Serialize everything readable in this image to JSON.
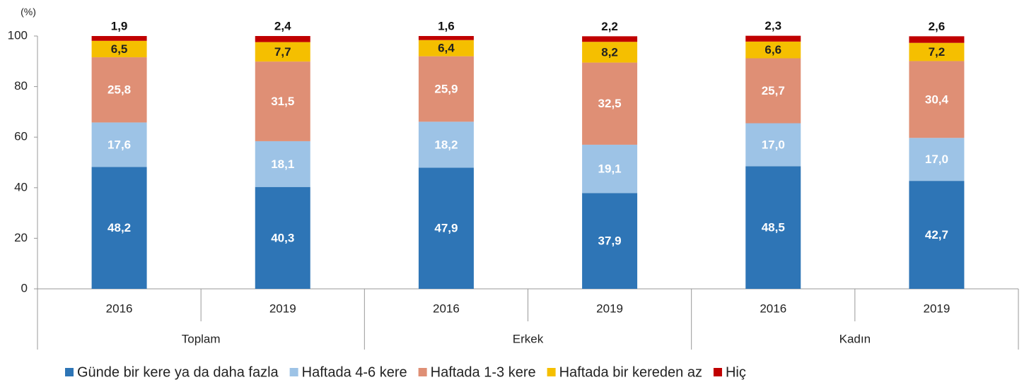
{
  "chart_data": {
    "type": "stacked_bar",
    "y_label": "(%)",
    "categories": [
      "2016",
      "2019",
      "2016",
      "2019",
      "2016",
      "2019"
    ],
    "groups": [
      "Toplam",
      "Erkek",
      "Kadın"
    ],
    "ylim": [
      0,
      100
    ],
    "yticks": [
      0,
      20,
      40,
      60,
      80,
      100
    ],
    "grid": false,
    "legend": "bottom",
    "series": [
      {
        "name": "Günde bir kere ya da daha fazla",
        "color": "#2e75b6",
        "values": [
          48.2,
          40.3,
          47.9,
          37.9,
          48.5,
          42.7
        ],
        "value_labels": [
          "48,2",
          "40,3",
          "47,9",
          "37,9",
          "48,5",
          "42,7"
        ]
      },
      {
        "name": "Haftada 4-6 kere",
        "color": "#9dc3e6",
        "values": [
          17.6,
          18.1,
          18.2,
          19.1,
          17.0,
          17.0
        ],
        "value_labels": [
          "17,6",
          "18,1",
          "18,2",
          "19,1",
          "17,0",
          "17,0"
        ]
      },
      {
        "name": "Haftada 1-3 kere",
        "color": "#df8f75",
        "values": [
          25.8,
          31.5,
          25.9,
          32.5,
          25.7,
          30.4
        ],
        "value_labels": [
          "25,8",
          "31,5",
          "25,9",
          "32,5",
          "25,7",
          "30,4"
        ]
      },
      {
        "name": "Haftada bir kereden az",
        "color": "#f5bf00",
        "values": [
          6.5,
          7.7,
          6.4,
          8.2,
          6.6,
          7.2
        ],
        "value_labels": [
          "6,5",
          "7,7",
          "6,4",
          "8,2",
          "6,6",
          "7,2"
        ]
      },
      {
        "name": "Hiç",
        "color": "#c00000",
        "values": [
          1.9,
          2.4,
          1.6,
          2.2,
          2.3,
          2.6
        ],
        "value_labels": [
          "1,9",
          "2,4",
          "1,6",
          "2,2",
          "2,3",
          "2,6"
        ]
      }
    ]
  }
}
